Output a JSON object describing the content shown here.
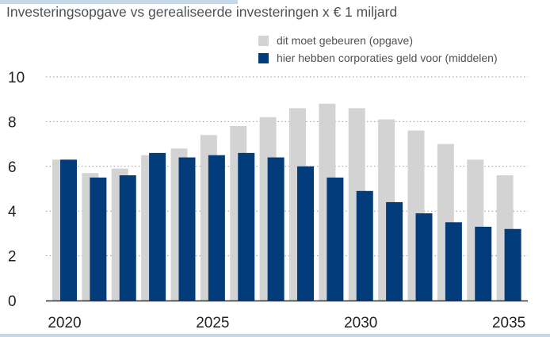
{
  "subtitle": "Investeringsopgave vs gerealiseerde investeringen x € 1 miljard",
  "colors": {
    "opgave": "#d3d3d3",
    "middelen": "#033c7a",
    "grid": "#9a9a9a",
    "axis": "#333333"
  },
  "chart_data": {
    "type": "bar",
    "title": "",
    "subtitle": "Investeringsopgave vs gerealiseerde investeringen x € 1 miljard",
    "categories": [
      2020,
      2021,
      2022,
      2023,
      2024,
      2025,
      2026,
      2027,
      2028,
      2029,
      2030,
      2031,
      2032,
      2033,
      2034,
      2035
    ],
    "x_tick_labels": [
      "2020",
      "2025",
      "2030",
      "2035"
    ],
    "y_ticks": [
      "0",
      "2",
      "4",
      "6",
      "8",
      "10"
    ],
    "ylim": [
      0,
      10
    ],
    "grid": "horizontal dotted",
    "legend_position": "top-right",
    "series": [
      {
        "name": "dit moet gebeuren (opgave)",
        "values": [
          6.3,
          5.7,
          5.9,
          6.5,
          6.8,
          7.4,
          7.8,
          8.2,
          8.6,
          8.8,
          8.6,
          8.1,
          7.6,
          7.0,
          6.3,
          5.6
        ]
      },
      {
        "name": "hier hebben corporaties geld voor (middelen)",
        "values": [
          6.3,
          5.5,
          5.6,
          6.6,
          6.4,
          6.5,
          6.6,
          6.4,
          6.0,
          5.5,
          4.9,
          4.4,
          3.9,
          3.5,
          3.3,
          3.2
        ]
      }
    ]
  }
}
